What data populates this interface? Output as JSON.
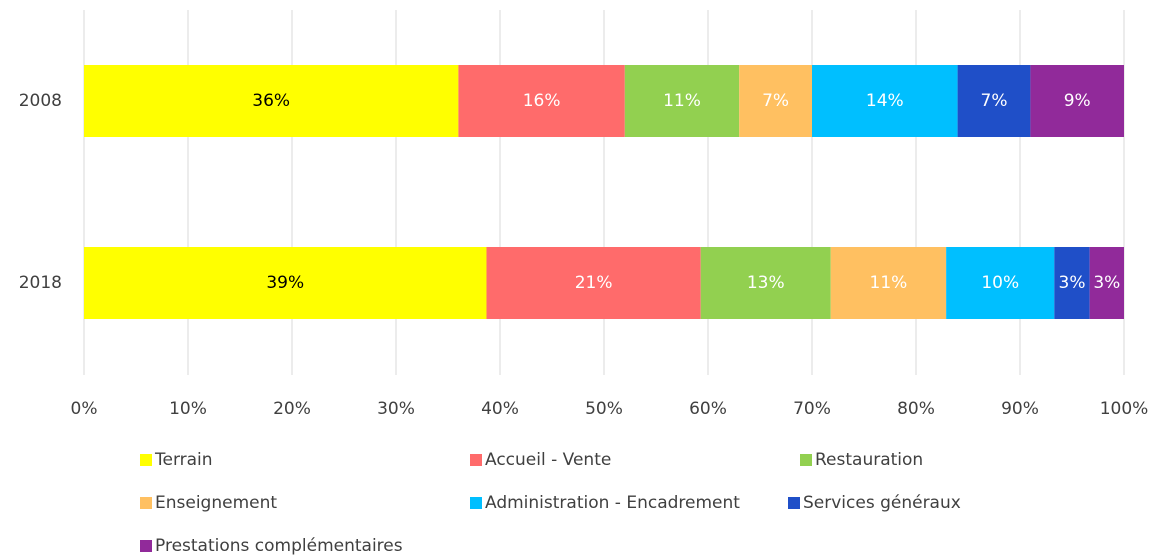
{
  "chart_data": {
    "type": "stacked_bar_horizontal",
    "categories": [
      "2008",
      "2018"
    ],
    "xlim": [
      0,
      100
    ],
    "xticks": [
      {
        "value": 0,
        "label": "0%"
      },
      {
        "value": 10,
        "label": "10%"
      },
      {
        "value": 20,
        "label": "20%"
      },
      {
        "value": 30,
        "label": "30%"
      },
      {
        "value": 40,
        "label": "40%"
      },
      {
        "value": 50,
        "label": "50%"
      },
      {
        "value": 60,
        "label": "60%"
      },
      {
        "value": 70,
        "label": "70%"
      },
      {
        "value": 80,
        "label": "80%"
      },
      {
        "value": 90,
        "label": "90%"
      },
      {
        "value": 100,
        "label": "100%"
      }
    ],
    "grid": true,
    "legend": "bottom",
    "series": [
      {
        "name": "Terrain",
        "color": "#ffff00",
        "label_color": "#000000",
        "values": [
          36,
          38.7
        ],
        "value_labels": [
          "36%",
          "39%"
        ]
      },
      {
        "name": "Accueil - Vente",
        "color": "#ff6b6b",
        "label_color": "#ffffff",
        "values": [
          16,
          20.6
        ],
        "value_labels": [
          "16%",
          "21%"
        ]
      },
      {
        "name": "Restauration",
        "color": "#92d050",
        "label_color": "#ffffff",
        "values": [
          11,
          12.5
        ],
        "value_labels": [
          "11%",
          "13%"
        ]
      },
      {
        "name": "Enseignement",
        "color": "#ffc061",
        "label_color": "#ffffff",
        "values": [
          7,
          11.1
        ],
        "value_labels": [
          "7%",
          "11%"
        ]
      },
      {
        "name": "Administration - Encadrement",
        "color": "#00bfff",
        "label_color": "#ffffff",
        "values": [
          14,
          10.4
        ],
        "value_labels": [
          "14%",
          "10%"
        ]
      },
      {
        "name": "Services généraux",
        "color": "#1f4fc8",
        "label_color": "#ffffff",
        "values": [
          7,
          3.4
        ],
        "value_labels": [
          "7%",
          "3%"
        ]
      },
      {
        "name": "Prestations complémentaires",
        "color": "#912a9a",
        "label_color": "#ffffff",
        "values": [
          9,
          3.3
        ],
        "value_labels": [
          "9%",
          "3%"
        ]
      }
    ]
  }
}
